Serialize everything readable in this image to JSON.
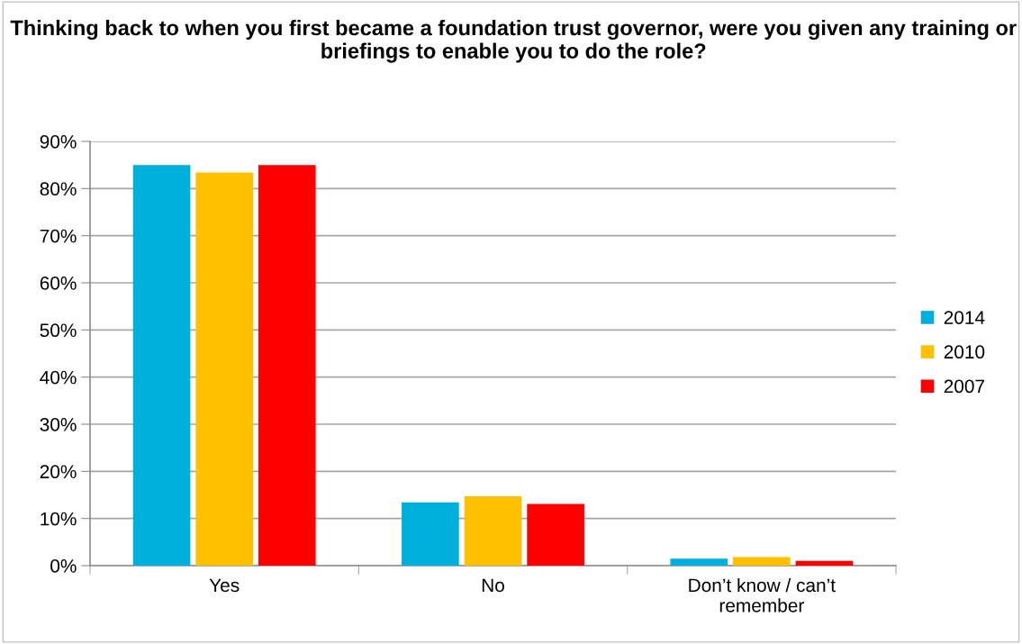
{
  "chart_data": {
    "type": "bar",
    "title": "Thinking back to when you first became a foundation trust governor, were you given any training or briefings to enable you to do the role?",
    "categories": [
      "Yes",
      "No",
      "Don’t know / can’t\nremember"
    ],
    "series": [
      {
        "name": "2014",
        "color": "#00b0dc",
        "values": [
          85,
          13.4,
          1.5
        ]
      },
      {
        "name": "2010",
        "color": "#ffc000",
        "values": [
          83.4,
          14.7,
          1.8
        ]
      },
      {
        "name": "2007",
        "color": "#ff0000",
        "values": [
          85,
          13.1,
          1.0
        ]
      }
    ],
    "ylim": [
      0,
      90
    ],
    "yticks": [
      {
        "value": 0,
        "label": "0%"
      },
      {
        "value": 10,
        "label": "10%"
      },
      {
        "value": 20,
        "label": "20%"
      },
      {
        "value": 30,
        "label": "30%"
      },
      {
        "value": 40,
        "label": "40%"
      },
      {
        "value": 50,
        "label": "50%"
      },
      {
        "value": 60,
        "label": "60%"
      },
      {
        "value": 70,
        "label": "70%"
      },
      {
        "value": 80,
        "label": "80%"
      },
      {
        "value": 90,
        "label": "90%"
      }
    ],
    "grid": "y",
    "legend": "right"
  }
}
